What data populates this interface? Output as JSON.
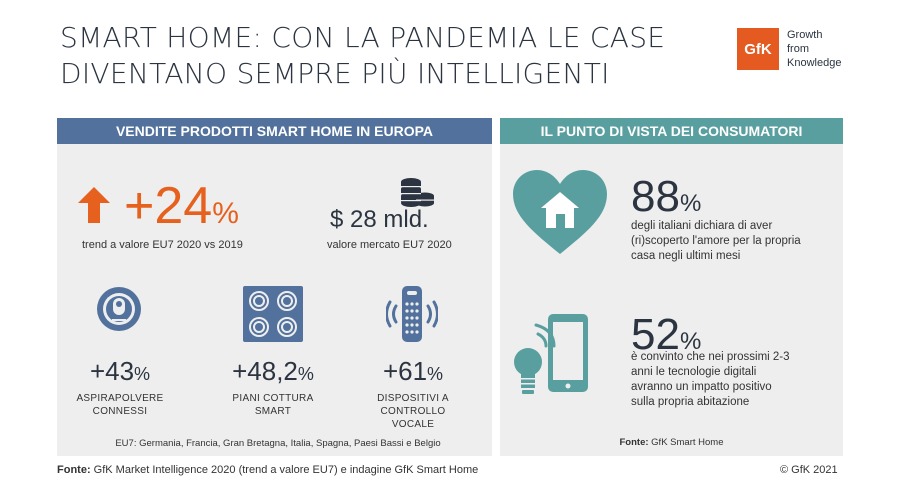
{
  "title": {
    "line1": "SMART HOME: CON LA PANDEMIA LE CASE",
    "line2": "DIVENTANO SEMPRE PIÙ INTELLIGENTI"
  },
  "logo": {
    "brand": "GfK",
    "tagline1": "Growth",
    "tagline2": "from",
    "tagline3": "Knowledge",
    "color": "#e55a20"
  },
  "left": {
    "header": "VENDITE PRODOTTI SMART HOME IN EUROPA",
    "kpi1": {
      "value": "+24",
      "unit": "%",
      "caption": "trend a valore EU7 2020 vs 2019",
      "icon": "arrow-up-icon"
    },
    "kpi2": {
      "value": "$ 28 mld.",
      "caption": "valore mercato EU7 2020",
      "icon": "coins-icon"
    },
    "items": [
      {
        "value": "+43",
        "unit": "%",
        "line1": "ASPIRAPOLVERE",
        "line2": "CONNESSI",
        "icon": "robot-vacuum-icon"
      },
      {
        "value": "+48,2",
        "unit": "%",
        "line1": "PIANI COTTURA",
        "line2": "SMART",
        "icon": "cooktop-icon"
      },
      {
        "value": "+61",
        "unit": "%",
        "line1": "DISPOSITIVI A",
        "line2": "CONTROLLO VOCALE",
        "icon": "smart-speaker-icon"
      }
    ],
    "note": "EU7: Germania, Francia, Gran Bretagna, Italia, Spagna, Paesi Bassi e Belgio",
    "band_color": "#52729d"
  },
  "right": {
    "header": "IL PUNTO DI VISTA DEI CONSUMATORI",
    "stat1": {
      "value": "88",
      "unit": "%",
      "line1": "degli italiani dichiara di aver",
      "line2": "(ri)scoperto l'amore per la propria",
      "line3": "casa negli ultimi mesi",
      "icon": "heart-home-icon"
    },
    "stat2": {
      "value": "52",
      "unit": "%",
      "line1": "è convinto che nei prossimi 2-3",
      "line2": "anni le tecnologie digitali",
      "line3": "avranno un impatto positivo",
      "line4": "sulla propria abitazione",
      "icon": "smartphone-bulb-icon"
    },
    "source_label": "Fonte:",
    "source_text": " GfK Smart Home",
    "band_color": "#5a9fa0"
  },
  "footer": {
    "label": "Fonte:",
    "text": " GfK Market Intelligence 2020 (trend a valore EU7) e indagine GfK Smart Home",
    "copyright": "© GfK 2021"
  }
}
